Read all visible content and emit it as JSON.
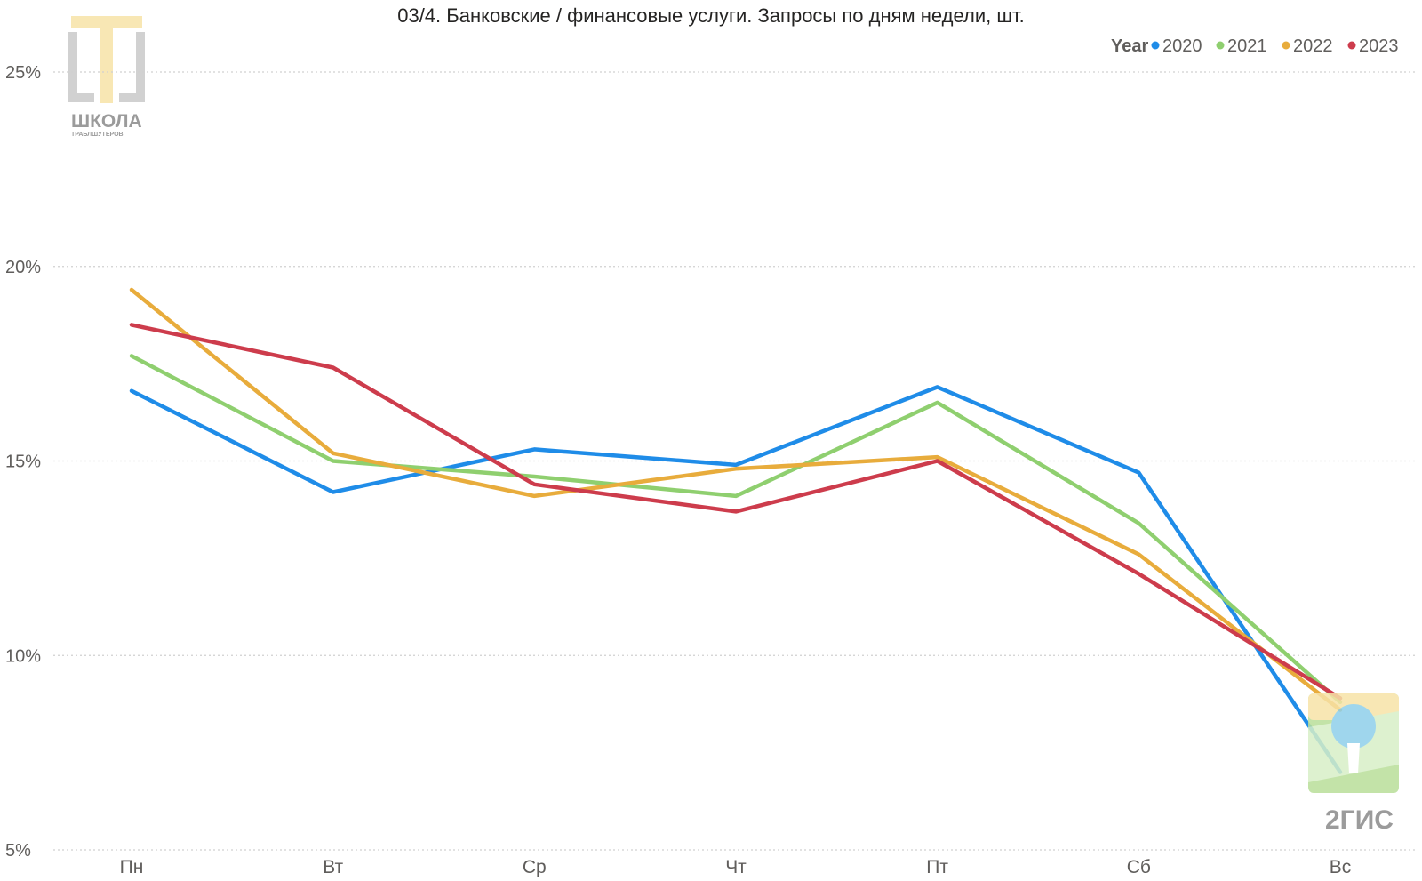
{
  "logos": {
    "school": {
      "name": "ШКОЛА",
      "subtitle": "ТРАБЛШУТЕРОВ"
    },
    "gis": {
      "name": "2ГИС"
    }
  },
  "chart_data": {
    "type": "line",
    "title": "03/4. Банковские / финансовые услуги. Запросы по дням недели, шт.",
    "xlabel": "",
    "ylabel": "",
    "categories": [
      "Пн",
      "Вт",
      "Ср",
      "Чт",
      "Пт",
      "Сб",
      "Вс"
    ],
    "ylim": [
      5,
      25
    ],
    "yticks": [
      5,
      10,
      15,
      20,
      25
    ],
    "ytick_labels": [
      "5%",
      "10%",
      "15%",
      "20%",
      "25%"
    ],
    "grid": true,
    "legend": {
      "title": "Year",
      "placement": "top-right"
    },
    "series": [
      {
        "name": "2020",
        "color": "#1f8ce8",
        "values": [
          16.8,
          14.2,
          15.3,
          14.9,
          16.9,
          14.7,
          7.0
        ]
      },
      {
        "name": "2021",
        "color": "#8fcf6f",
        "values": [
          17.7,
          15.0,
          14.6,
          14.1,
          16.5,
          13.4,
          8.8
        ]
      },
      {
        "name": "2022",
        "color": "#e8ac3c",
        "values": [
          19.4,
          15.2,
          14.1,
          14.8,
          15.1,
          12.6,
          8.6
        ]
      },
      {
        "name": "2023",
        "color": "#cd3c4c",
        "values": [
          18.5,
          17.4,
          14.4,
          13.7,
          15.0,
          12.1,
          8.9
        ]
      }
    ]
  }
}
